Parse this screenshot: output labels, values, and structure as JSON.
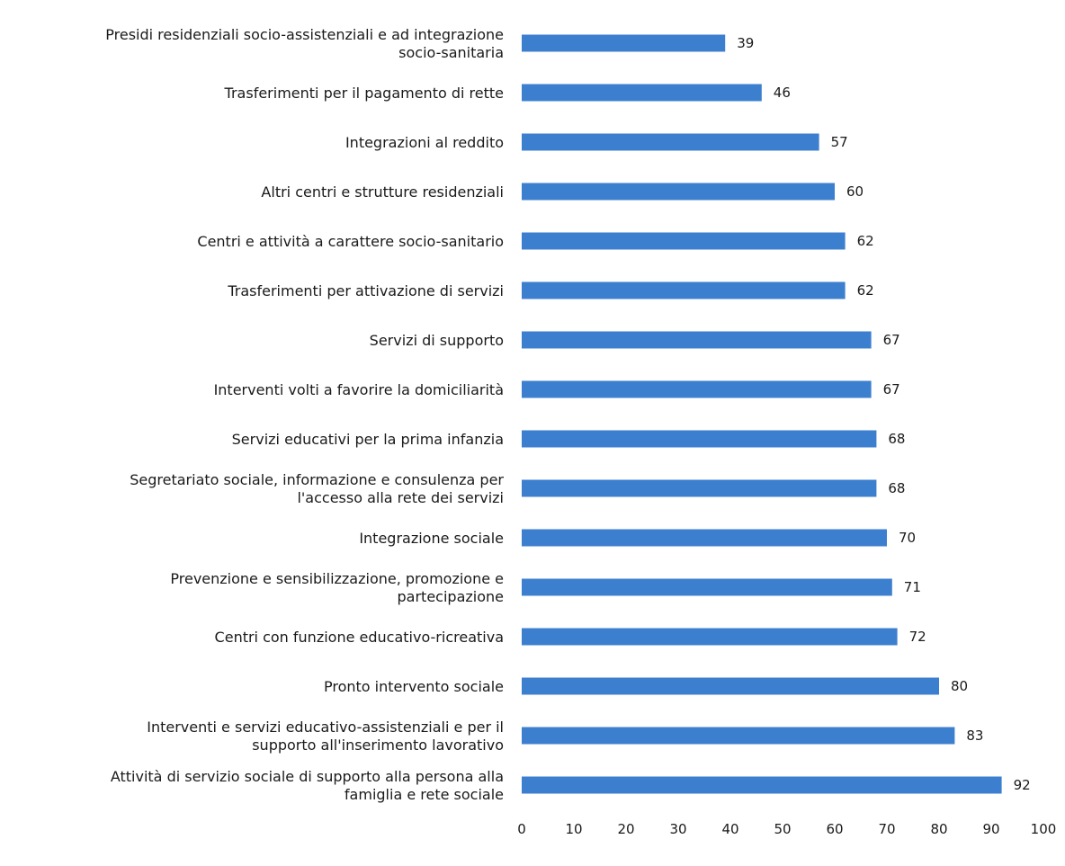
{
  "chart_data": {
    "type": "bar",
    "orientation": "horizontal",
    "categories": [
      "Presidi residenziali socio-assistenziali e ad integrazione\nsocio-sanitaria",
      "Trasferimenti per il pagamento di rette",
      "Integrazioni al reddito",
      "Altri centri e strutture residenziali",
      "Centri e attività a carattere socio-sanitario",
      "Trasferimenti per attivazione di servizi",
      "Servizi di supporto",
      "Interventi volti a favorire la domiciliarità",
      "Servizi educativi per la prima infanzia",
      "Segretariato sociale, informazione e consulenza per\nl'accesso alla rete dei servizi",
      "Integrazione sociale",
      "Prevenzione e sensibilizzazione, promozione e\npartecipazione",
      "Centri con funzione educativo-ricreativa",
      "Pronto intervento sociale",
      "Interventi e servizi educativo-assistenziali e per il\nsupporto all'inserimento lavorativo",
      "Attività di servizio sociale di supporto alla persona alla\nfamiglia e rete sociale"
    ],
    "values": [
      39,
      46,
      57,
      60,
      62,
      62,
      67,
      67,
      68,
      68,
      70,
      71,
      72,
      80,
      83,
      92
    ],
    "xlim": [
      0,
      100
    ],
    "ticks": [
      0,
      10,
      20,
      30,
      40,
      50,
      60,
      70,
      80,
      90,
      100
    ],
    "grid": false,
    "legend": "none",
    "bar_color": "#3d7fcf"
  }
}
